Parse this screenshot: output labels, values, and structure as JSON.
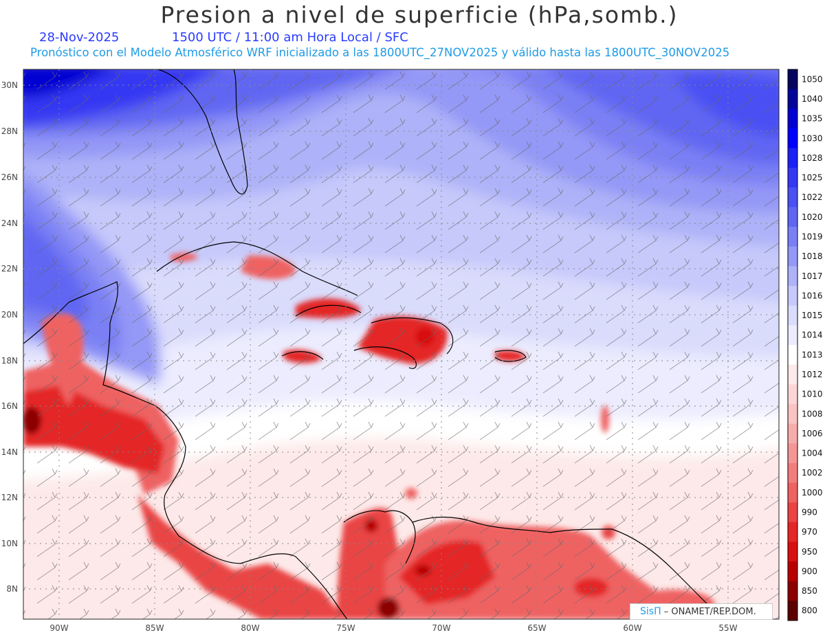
{
  "title": "Presion a nivel de superficie (hPa,somb.)",
  "date_label": "28-Nov-2025",
  "time_label": "1500 UTC / 11:00 am Hora Local / SFC",
  "model_note": "Pronóstico con el Modelo Atmosférico WRF inicializado a las 1800UTC_27NOV2025 y válido hasta las  1800UTC_30NOV2025",
  "lat_labels": [
    "30N",
    "28N",
    "26N",
    "24N",
    "22N",
    "20N",
    "18N",
    "16N",
    "14N",
    "12N",
    "10N",
    "8N"
  ],
  "lon_labels": [
    "90W",
    "85W",
    "80W",
    "75W",
    "70W",
    "65W",
    "60W",
    "55W"
  ],
  "colorbar": {
    "levels": [
      "1050",
      "1040",
      "1035",
      "1030",
      "1028",
      "1025",
      "1022",
      "1020",
      "1019",
      "1018",
      "1017",
      "1016",
      "1015",
      "1014",
      "1013",
      "1012",
      "1010",
      "1008",
      "1006",
      "1004",
      "1002",
      "1000",
      "990",
      "970",
      "950",
      "900",
      "850",
      "800"
    ],
    "colors": [
      "#04065e",
      "#03049a",
      "#0202d2",
      "#0000ff",
      "#1c20f4",
      "#3438f2",
      "#4a50f2",
      "#6066f2",
      "#7a80f4",
      "#9498f6",
      "#aeb2f8",
      "#c6c9fa",
      "#dadcfc",
      "#ececfe",
      "#ffffff",
      "#fde9e9",
      "#fcd6d6",
      "#fac3c3",
      "#f7acac",
      "#f59696",
      "#f27d7d",
      "#ef6262",
      "#ea4444",
      "#e42626",
      "#d81010",
      "#b80000",
      "#8c0000",
      "#5c0000"
    ]
  },
  "credit": {
    "brand": "SisΠ",
    "text": "– ONAMET/REP.DOM."
  }
}
